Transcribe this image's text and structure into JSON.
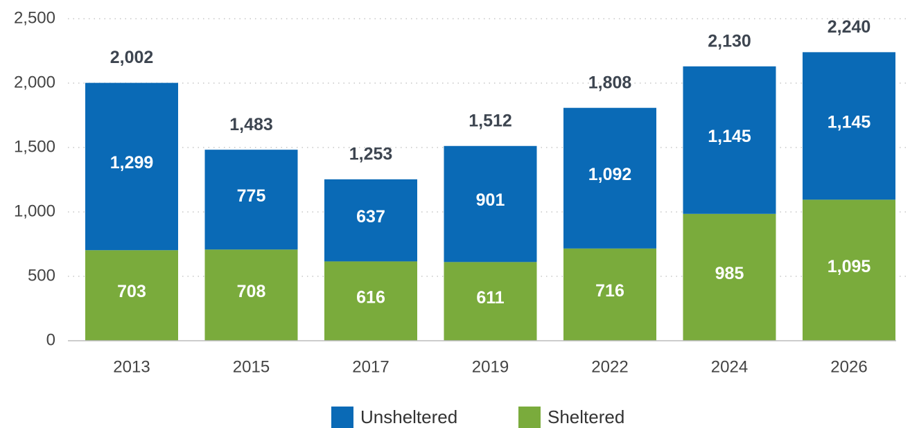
{
  "chart_data": {
    "type": "stacked_bar",
    "categories": [
      "2013",
      "2015",
      "2017",
      "2019",
      "2022",
      "2024",
      "2026"
    ],
    "series": [
      {
        "name": "Sheltered",
        "color": "#7aab3c",
        "values": [
          703,
          708,
          616,
          611,
          716,
          985,
          1095
        ],
        "value_labels": [
          "703",
          "708",
          "616",
          "611",
          "716",
          "985",
          "1,095"
        ]
      },
      {
        "name": "Unsheltered",
        "color": "#0a6ab6",
        "values": [
          1299,
          775,
          637,
          901,
          1092,
          1145,
          1145
        ],
        "value_labels": [
          "1,299",
          "775",
          "637",
          "901",
          "1,092",
          "1,145",
          "1,145"
        ]
      }
    ],
    "totals": [
      2002,
      1483,
      1253,
      1512,
      1808,
      2130,
      2240
    ],
    "total_labels": [
      "2,002",
      "1,483",
      "1,253",
      "1,512",
      "1,808",
      "2,130",
      "2,240"
    ],
    "ylim": [
      0,
      2500
    ],
    "yticks": [
      0,
      500,
      {
        "value": 1000,
        "label": "1,000"
      },
      {
        "value": 1500,
        "label": "1,500"
      },
      {
        "value": 2000,
        "label": "2,000"
      },
      {
        "value": 2500,
        "label": "2,500"
      }
    ],
    "grid": true,
    "legend": "bottom"
  }
}
